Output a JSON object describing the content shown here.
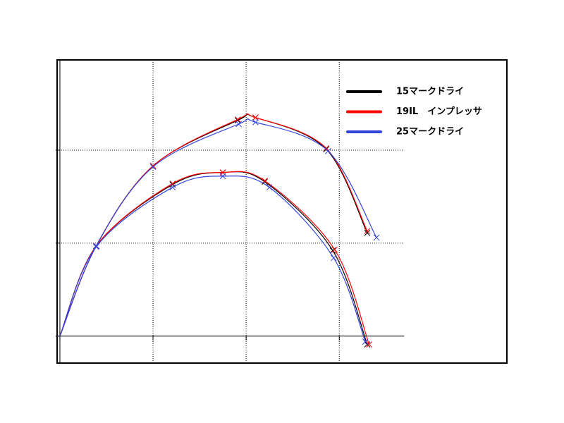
{
  "chart_data": {
    "type": "line",
    "xlim": [
      -0.03,
      4.8
    ],
    "ylim": [
      -0.29,
      2.97
    ],
    "xticks": [
      0,
      1,
      2,
      3
    ],
    "yticks": [
      0,
      1,
      2
    ],
    "grid": true,
    "legend": "upper right",
    "series": [
      {
        "name": "15マークドライ",
        "color": "#000000",
        "trajectories": [
          {
            "x": [
              0,
              0.39,
              1.0,
              1.91,
              2.1,
              2.86,
              3.3
            ],
            "y": [
              0,
              0.97,
              1.83,
              2.32,
              2.35,
              2.01,
              1.11
            ]
          },
          {
            "x": [
              0,
              0.39,
              1.21,
              1.75,
              2.2,
              2.93,
              3.3
            ],
            "y": [
              0,
              0.97,
              1.63,
              1.76,
              1.66,
              0.92,
              -0.09
            ]
          }
        ]
      },
      {
        "name": "19IL　インプレッサ",
        "color": "#ff0000",
        "trajectories": [
          {
            "x": [
              0,
              0.39,
              1.0,
              1.91,
              2.1,
              2.86,
              3.3
            ],
            "y": [
              0,
              0.97,
              1.83,
              2.33,
              2.35,
              2.02,
              1.13
            ]
          },
          {
            "x": [
              0,
              0.39,
              1.21,
              1.75,
              2.2,
              2.95,
              3.32
            ],
            "y": [
              0,
              0.97,
              1.64,
              1.76,
              1.67,
              0.93,
              -0.09
            ]
          }
        ]
      },
      {
        "name": "25マークドライ",
        "color": "#3344dd",
        "trajectories": [
          {
            "x": [
              0,
              0.39,
              1.0,
              1.92,
              2.1,
              2.88,
              3.4
            ],
            "y": [
              0,
              0.97,
              1.82,
              2.28,
              2.3,
              1.99,
              1.06
            ]
          },
          {
            "x": [
              0,
              0.39,
              1.21,
              1.75,
              2.25,
              2.94,
              3.28
            ],
            "y": [
              0,
              0.96,
              1.6,
              1.72,
              1.6,
              0.84,
              -0.06
            ]
          }
        ]
      }
    ]
  }
}
